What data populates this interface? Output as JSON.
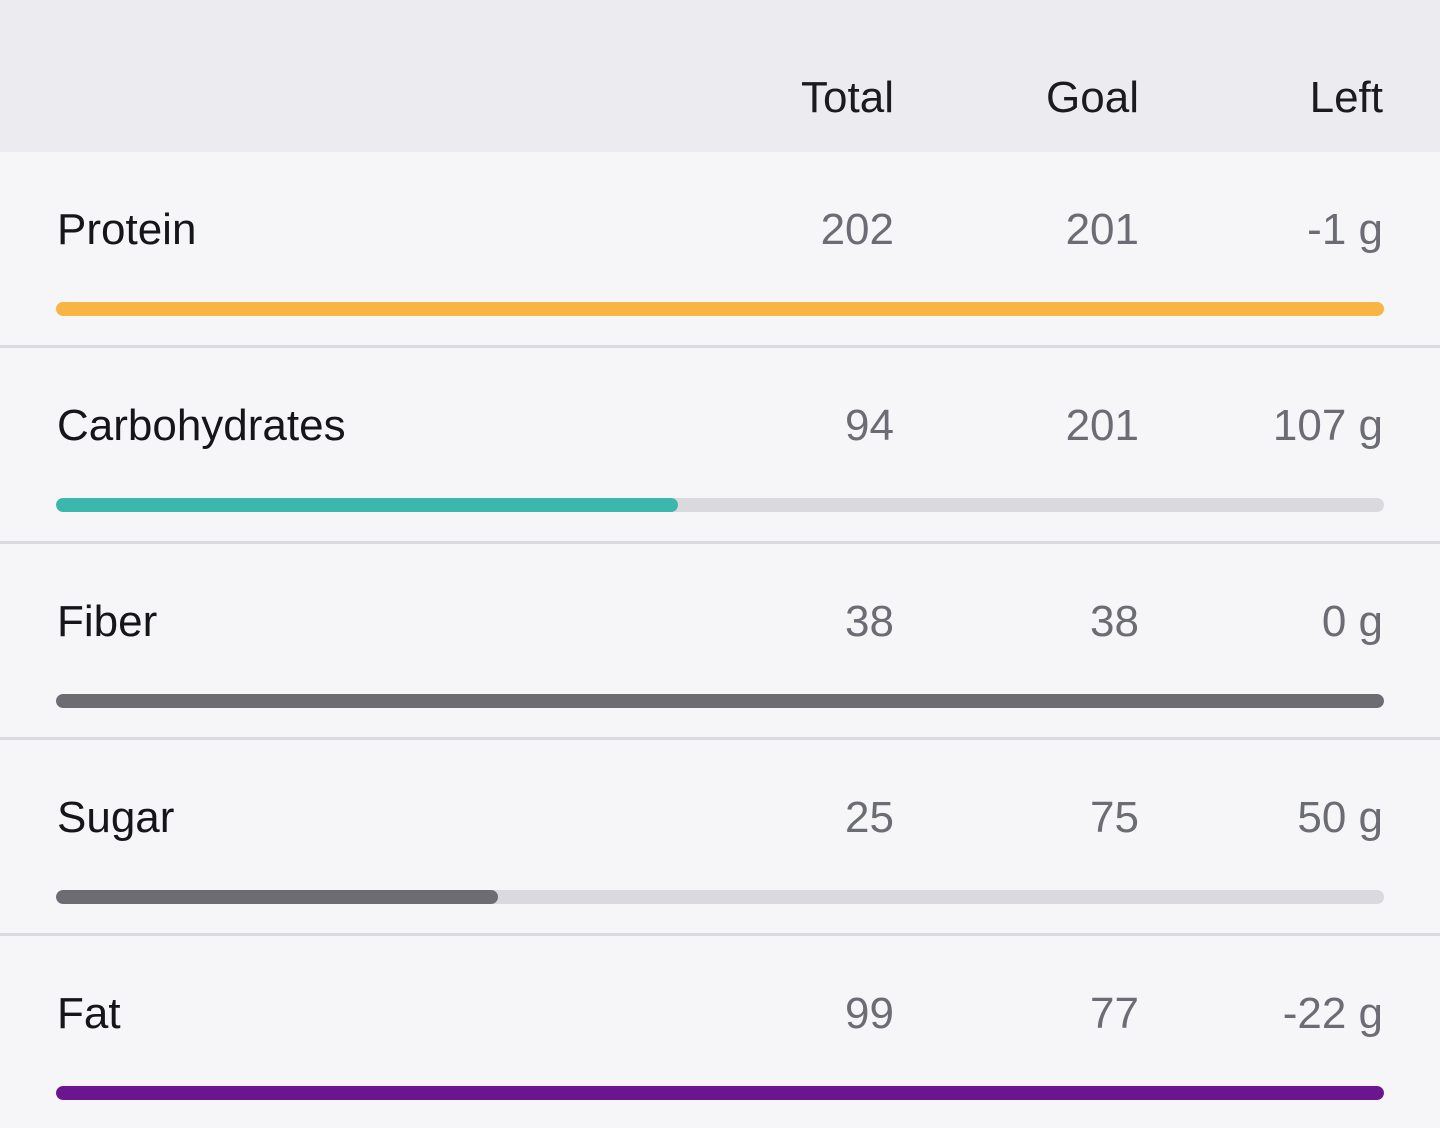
{
  "header": {
    "total_label": "Total",
    "goal_label": "Goal",
    "left_label": "Left"
  },
  "rows": [
    {
      "name": "Protein",
      "total": "202",
      "goal": "201",
      "left": "-1 g",
      "progress": 1.0,
      "color": "#f8b544"
    },
    {
      "name": "Carbohydrates",
      "total": "94",
      "goal": "201",
      "left": "107 g",
      "progress": 0.468,
      "color": "#3bb8ae"
    },
    {
      "name": "Fiber",
      "total": "38",
      "goal": "38",
      "left": "0 g",
      "progress": 1.0,
      "color": "#6c6c72"
    },
    {
      "name": "Sugar",
      "total": "25",
      "goal": "75",
      "left": "50 g",
      "progress": 0.333,
      "color": "#6c6c72"
    },
    {
      "name": "Fat",
      "total": "99",
      "goal": "77",
      "left": "-22 g",
      "progress": 1.0,
      "color": "#6b1591"
    }
  ],
  "colors": {
    "track": "#d9d9de",
    "header_bg": "#ebebf0",
    "row_bg": "#f6f6f9"
  }
}
